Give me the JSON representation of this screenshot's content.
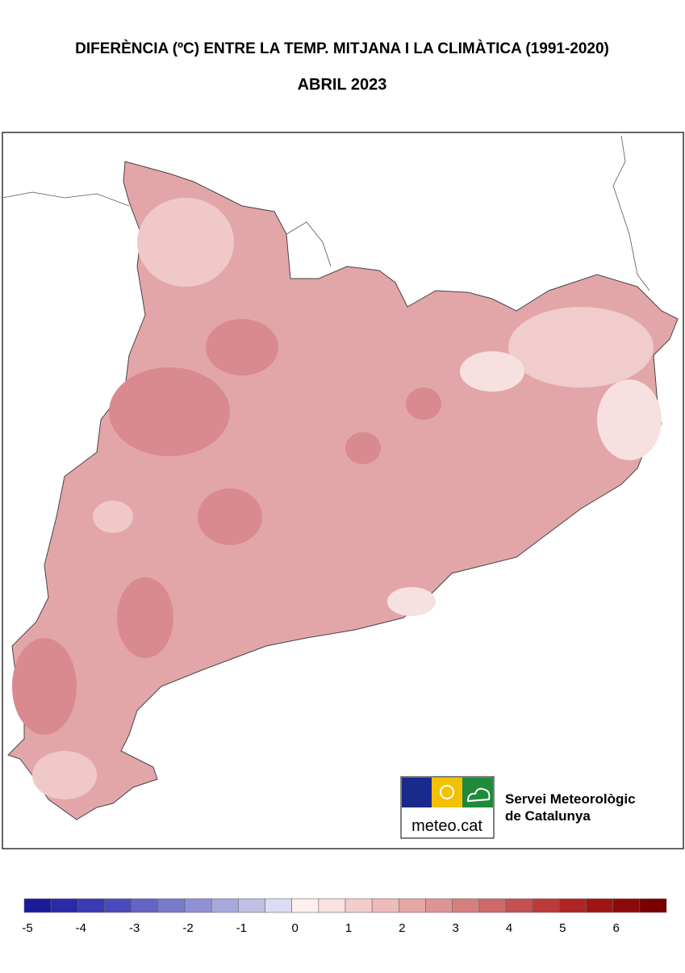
{
  "header": {
    "title": "DIFERÈNCIA (ºC) ENTRE LA TEMP. MITJANA I LA CLIMÀTICA (1991-2020)",
    "subtitle": "ABRIL 2023"
  },
  "logo": {
    "brand": "meteo.cat",
    "org": [
      "Servei Meteorològic",
      "de Catalunya"
    ]
  },
  "legend": {
    "range": [
      -5,
      7
    ],
    "ticks": [
      -5,
      -4,
      -3,
      -2,
      -1,
      0,
      1,
      2,
      3,
      4,
      5,
      6
    ],
    "colors": [
      "#1a1a9a",
      "#2a2aa8",
      "#3a3ab4",
      "#4a4abc",
      "#6464c4",
      "#7a7acc",
      "#9090d4",
      "#a8a8dc",
      "#c0c0e6",
      "#dcdcf2",
      "#fff0f0",
      "#fbe0e0",
      "#f4cccc",
      "#eebaba",
      "#e6a6a6",
      "#de9494",
      "#d67f7f",
      "#ce6a6a",
      "#c45050",
      "#bb3a3a",
      "#b02424",
      "#a01414",
      "#8e0a0a",
      "#7a0000"
    ]
  }
}
